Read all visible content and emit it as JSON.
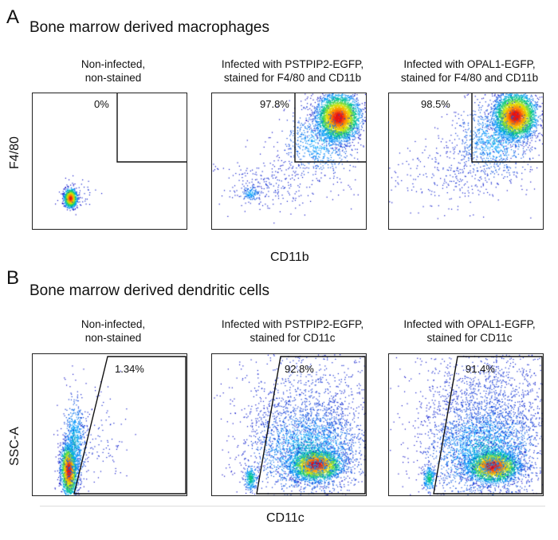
{
  "panelA": {
    "letter": "A",
    "title": "Bone marrow derived macrophages",
    "ylabel": "F4/80",
    "xlabel": "CD11b",
    "plots": [
      {
        "title1": "Non-infected,",
        "title2": "non-stained",
        "pct": "0%"
      },
      {
        "title1": "Infected with PSTPIP2-EGFP,",
        "title2": "stained for F4/80 and CD11b",
        "pct": "97.8%"
      },
      {
        "title1": "Infected with OPAL1-EGFP,",
        "title2": "stained for F4/80 and CD11b",
        "pct": "98.5%"
      }
    ]
  },
  "panelB": {
    "letter": "B",
    "title": "Bone marrow derived dendritic cells",
    "ylabel": "SSC-A",
    "xlabel": "CD11c",
    "plots": [
      {
        "title1": "Non-infected,",
        "title2": "non-stained",
        "pct": "1.34%"
      },
      {
        "title1": "Infected with PSTPIP2-EGFP,",
        "title2": "stained for CD11c",
        "pct": "92.8%"
      },
      {
        "title1": "Infected with OPAL1-EGFP,",
        "title2": "stained for CD11c",
        "pct": "91.4%"
      }
    ]
  }
}
